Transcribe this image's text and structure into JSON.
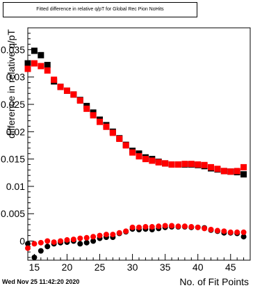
{
  "title": "Fitted difference in relative q/pT for Global Rec Pion NoHits",
  "timestamp": "Wed Nov 25 11:42:20 2020",
  "chart_data": {
    "type": "scatter",
    "title": "Fitted difference in relative q/pT for Global Rec Pion NoHits",
    "xlabel": "No. of Fit Points",
    "ylabel": "difference in relative q/pT",
    "xlim": [
      14,
      48
    ],
    "ylim": [
      -0.0035,
      0.039
    ],
    "xticks": [
      "15",
      "20",
      "25",
      "30",
      "35",
      "40",
      "45"
    ],
    "yticks": [
      "0",
      "0.005",
      "0.01",
      "0.015",
      "0.02",
      "0.025",
      "0.03",
      "0.035"
    ],
    "grid": false,
    "legend": "none",
    "colors": {
      "black_series": "#000000",
      "red_series": "#ff0000"
    },
    "series": [
      {
        "color": "black",
        "role": "mean",
        "x": [
          14,
          15,
          16,
          17,
          18,
          19,
          20,
          21,
          22,
          23,
          24,
          25,
          26,
          27,
          28,
          29,
          30,
          31,
          32,
          33,
          34,
          35,
          36,
          37,
          38,
          39,
          40,
          41,
          42,
          43,
          44,
          45,
          46,
          47
        ],
        "y": [
          0.0325,
          0.0348,
          0.034,
          0.0322,
          0.0292,
          0.0282,
          0.0275,
          0.0268,
          0.0258,
          0.0247,
          0.0235,
          0.0222,
          0.0212,
          0.02,
          0.0188,
          0.0176,
          0.0165,
          0.016,
          0.0153,
          0.015,
          0.0145,
          0.0142,
          0.014,
          0.014,
          0.014,
          0.014,
          0.0139,
          0.0137,
          0.0133,
          0.0131,
          0.0128,
          0.0127,
          0.0126,
          0.0122
        ]
      },
      {
        "color": "red",
        "role": "mean",
        "x": [
          14,
          15,
          16,
          17,
          18,
          19,
          20,
          21,
          22,
          23,
          24,
          25,
          26,
          27,
          28,
          29,
          30,
          31,
          32,
          33,
          34,
          35,
          36,
          37,
          38,
          39,
          40,
          41,
          42,
          43,
          44,
          45,
          46,
          47
        ],
        "y": [
          0.0315,
          0.0325,
          0.032,
          0.0312,
          0.0295,
          0.0282,
          0.0275,
          0.0268,
          0.0257,
          0.0242,
          0.023,
          0.0218,
          0.0209,
          0.0198,
          0.0187,
          0.0175,
          0.0162,
          0.0155,
          0.015,
          0.0147,
          0.0144,
          0.0142,
          0.014,
          0.014,
          0.0141,
          0.0141,
          0.014,
          0.0139,
          0.0135,
          0.0132,
          0.0128,
          0.0127,
          0.0128,
          0.0135
        ]
      },
      {
        "color": "black",
        "role": "sigma",
        "x": [
          14,
          15,
          16,
          17,
          18,
          19,
          20,
          21,
          22,
          23,
          24,
          25,
          26,
          27,
          28,
          29,
          30,
          31,
          32,
          33,
          34,
          35,
          36,
          37,
          38,
          39,
          40,
          41,
          42,
          43,
          44,
          45,
          46,
          47
        ],
        "y": [
          -0.0005,
          -0.003,
          -0.0018,
          -0.001,
          -0.0005,
          -0.0003,
          -0.0002,
          0.0,
          -0.0005,
          -0.0003,
          0.0,
          0.0005,
          0.0007,
          0.0007,
          0.0014,
          0.0017,
          0.0022,
          0.0021,
          0.0022,
          0.0021,
          0.0023,
          0.0025,
          0.0026,
          0.0026,
          0.0026,
          0.0025,
          0.0025,
          0.0024,
          0.002,
          0.0018,
          0.0015,
          0.0015,
          0.0014,
          0.0008
        ]
      },
      {
        "color": "red",
        "role": "sigma",
        "x": [
          14,
          15,
          16,
          17,
          18,
          19,
          20,
          21,
          22,
          23,
          24,
          25,
          26,
          27,
          28,
          29,
          30,
          31,
          32,
          33,
          34,
          35,
          36,
          37,
          38,
          39,
          40,
          41,
          42,
          43,
          44,
          45,
          46,
          47
        ],
        "y": [
          -0.0013,
          -0.0005,
          -0.0003,
          0.0,
          -0.0002,
          0.0,
          0.0002,
          0.0003,
          0.0005,
          0.0006,
          0.0008,
          0.001,
          0.0012,
          0.0012,
          0.0015,
          0.0018,
          0.0025,
          0.0025,
          0.0026,
          0.0026,
          0.0027,
          0.0028,
          0.0028,
          0.0027,
          0.0027,
          0.0026,
          0.0025,
          0.0023,
          0.0021,
          0.0019,
          0.0018,
          0.0016,
          0.0016,
          0.0016
        ]
      }
    ]
  }
}
